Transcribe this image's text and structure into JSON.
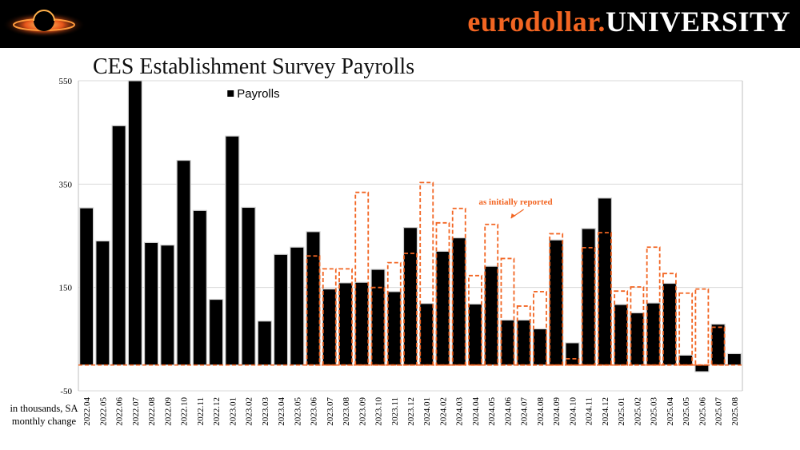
{
  "header": {
    "brand_part1": "eurodollar.",
    "brand_part2": "UNIVERSITY",
    "logo_icon": "black-hole-logo-icon"
  },
  "chart_title": "CES Establishment Survey Payrolls",
  "units_label_line1": "in thousands, SA",
  "units_label_line2": "monthly change",
  "colors": {
    "bar": "#000000",
    "initial_outline": "#f26522",
    "annotation": "#f26522",
    "grid": "#d9d9d9"
  },
  "chart_data": {
    "type": "bar",
    "title": "CES Establishment Survey Payrolls",
    "ylabel": "in thousands, SA monthly change",
    "ylim": [
      -50,
      550
    ],
    "yticks": [
      -50,
      150,
      350,
      550
    ],
    "legend": "top-center",
    "annotation": "as initially reported",
    "categories": [
      "2022.04",
      "2022.05",
      "2022.06",
      "2022.07",
      "2022.08",
      "2022.09",
      "2022.10",
      "2022.11",
      "2022.12",
      "2023.01",
      "2023.02",
      "2023.03",
      "2023.04",
      "2023.05",
      "2023.06",
      "2023.07",
      "2023.08",
      "2023.09",
      "2023.10",
      "2023.11",
      "2023.12",
      "2024.01",
      "2024.02",
      "2024.03",
      "2024.04",
      "2024.05",
      "2024.06",
      "2024.07",
      "2024.08",
      "2024.09",
      "2024.10",
      "2024.11",
      "2024.12",
      "2025.01",
      "2025.02",
      "2025.03",
      "2025.04",
      "2025.05",
      "2025.06",
      "2025.07",
      "2025.08"
    ],
    "series": [
      {
        "name": "Payrolls",
        "values": [
          304,
          240,
          463,
          550,
          237,
          232,
          396,
          299,
          127,
          443,
          305,
          85,
          214,
          228,
          258,
          147,
          159,
          160,
          185,
          142,
          266,
          119,
          220,
          246,
          118,
          191,
          87,
          87,
          70,
          242,
          43,
          264,
          323,
          117,
          101,
          120,
          158,
          19,
          -13,
          79,
          22
        ]
      },
      {
        "name": "as initially reported",
        "values": [
          null,
          null,
          null,
          null,
          null,
          null,
          null,
          null,
          null,
          null,
          null,
          null,
          null,
          null,
          211,
          186,
          186,
          334,
          150,
          198,
          216,
          353,
          275,
          303,
          173,
          272,
          206,
          114,
          142,
          254,
          12,
          227,
          256,
          143,
          151,
          228,
          177,
          139,
          147,
          73,
          null
        ]
      }
    ]
  }
}
